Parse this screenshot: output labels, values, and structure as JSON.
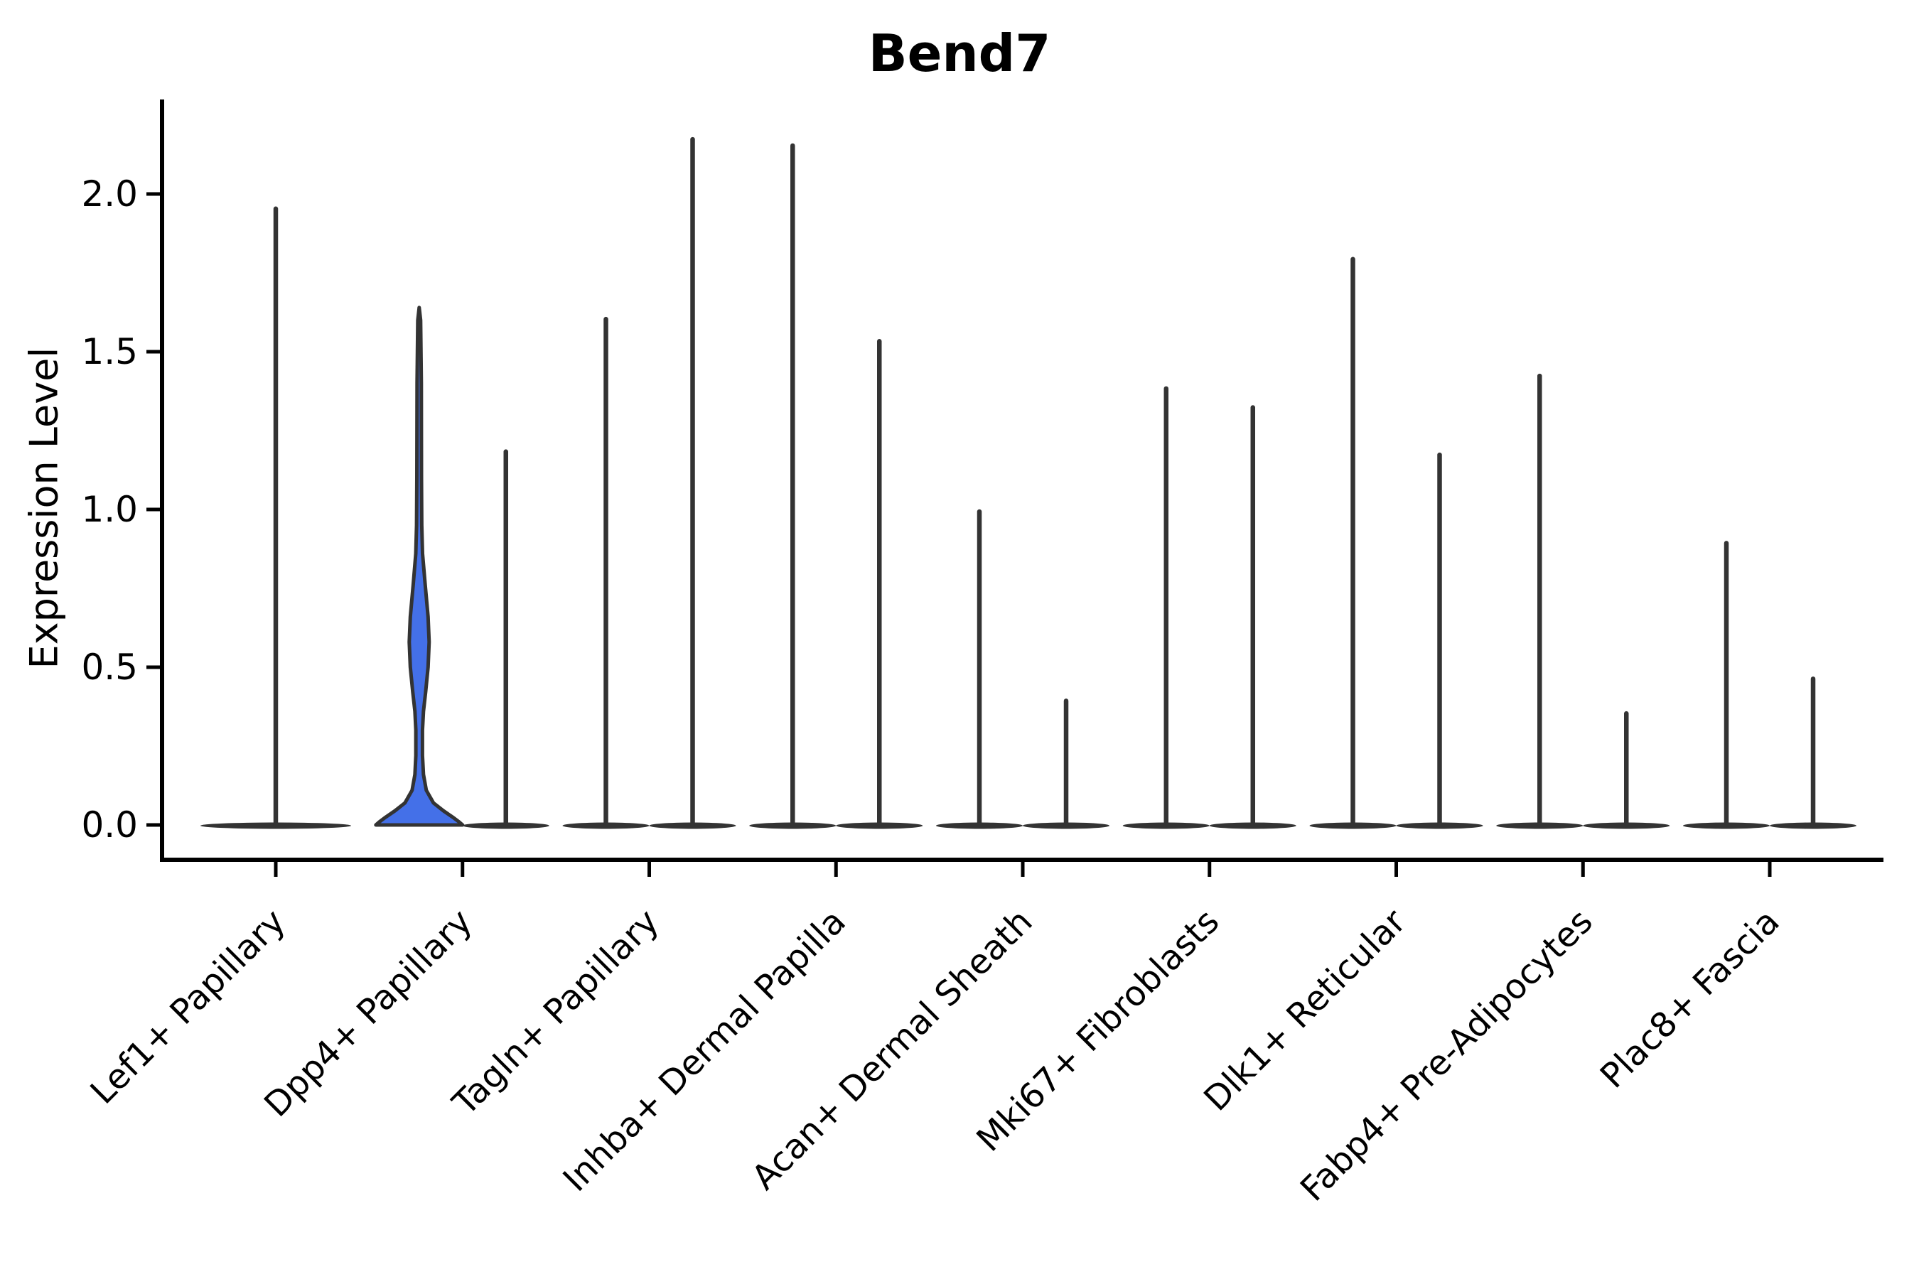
{
  "chart_data": {
    "type": "violin",
    "title": "Bend7",
    "ylabel": "Expression Level",
    "xlabel": "",
    "ytick_labels": [
      "0.0",
      "0.5",
      "1.0",
      "1.5",
      "2.0"
    ],
    "ytick_values": [
      0.0,
      0.5,
      1.0,
      1.5,
      2.0
    ],
    "ylim": [
      -0.11,
      2.3
    ],
    "grid": false,
    "legend": "none",
    "colors": {
      "highlight_fill": "#4470E8",
      "violin_line": "#333333",
      "axis_line": "#000000",
      "background": "#ffffff"
    },
    "categories": [
      "Lef1+ Papillary",
      "Dpp4+ Papillary",
      "Tagln+ Papillary",
      "Inhba+ Dermal Papilla",
      "Acan+ Dermal Sheath",
      "Mki67+ Fibroblasts",
      "Dlk1+ Reticular",
      "Fabp4+ Pre-Adipocytes",
      "Plac8+ Fascia"
    ],
    "series": [
      {
        "category": "Lef1+ Papillary",
        "violins": [
          {
            "position": "center",
            "max": 1.96,
            "filled": false
          }
        ]
      },
      {
        "category": "Dpp4+ Papillary",
        "violins": [
          {
            "position": "left",
            "max": 1.64,
            "filled": true
          },
          {
            "position": "right",
            "max": 1.19,
            "filled": false
          }
        ]
      },
      {
        "category": "Tagln+ Papillary",
        "violins": [
          {
            "position": "left",
            "max": 1.61,
            "filled": false
          },
          {
            "position": "right",
            "max": 2.18,
            "filled": false
          }
        ]
      },
      {
        "category": "Inhba+ Dermal Papilla",
        "violins": [
          {
            "position": "left",
            "max": 2.16,
            "filled": false
          },
          {
            "position": "right",
            "max": 1.54,
            "filled": false
          }
        ]
      },
      {
        "category": "Acan+ Dermal Sheath",
        "violins": [
          {
            "position": "left",
            "max": 1.0,
            "filled": false
          },
          {
            "position": "right",
            "max": 0.4,
            "filled": false
          }
        ]
      },
      {
        "category": "Mki67+ Fibroblasts",
        "violins": [
          {
            "position": "left",
            "max": 1.39,
            "filled": false
          },
          {
            "position": "right",
            "max": 1.33,
            "filled": false
          }
        ]
      },
      {
        "category": "Dlk1+ Reticular",
        "violins": [
          {
            "position": "left",
            "max": 1.8,
            "filled": false
          },
          {
            "position": "right",
            "max": 1.18,
            "filled": false
          }
        ]
      },
      {
        "category": "Fabp4+ Pre-Adipocytes",
        "violins": [
          {
            "position": "left",
            "max": 1.43,
            "filled": false
          },
          {
            "position": "right",
            "max": 0.36,
            "filled": false
          }
        ]
      },
      {
        "category": "Plac8+ Fascia",
        "violins": [
          {
            "position": "left",
            "max": 0.9,
            "filled": false
          },
          {
            "position": "right",
            "max": 0.47,
            "filled": false
          }
        ]
      }
    ],
    "filled_violin_profile": [
      [
        1.64,
        0.0
      ],
      [
        1.6,
        2.0
      ],
      [
        1.4,
        3.0
      ],
      [
        1.1,
        3.2
      ],
      [
        0.95,
        3.6
      ],
      [
        0.86,
        4.8
      ],
      [
        0.76,
        8.5
      ],
      [
        0.66,
        12.5
      ],
      [
        0.58,
        14.0
      ],
      [
        0.5,
        12.5
      ],
      [
        0.42,
        9.0
      ],
      [
        0.36,
        6.0
      ],
      [
        0.3,
        4.6
      ],
      [
        0.22,
        4.6
      ],
      [
        0.16,
        6.0
      ],
      [
        0.11,
        10.0
      ],
      [
        0.07,
        20.0
      ],
      [
        0.045,
        34.0
      ],
      [
        0.025,
        47.0
      ],
      [
        0.01,
        56.0
      ],
      [
        0.0,
        61.0
      ]
    ]
  }
}
